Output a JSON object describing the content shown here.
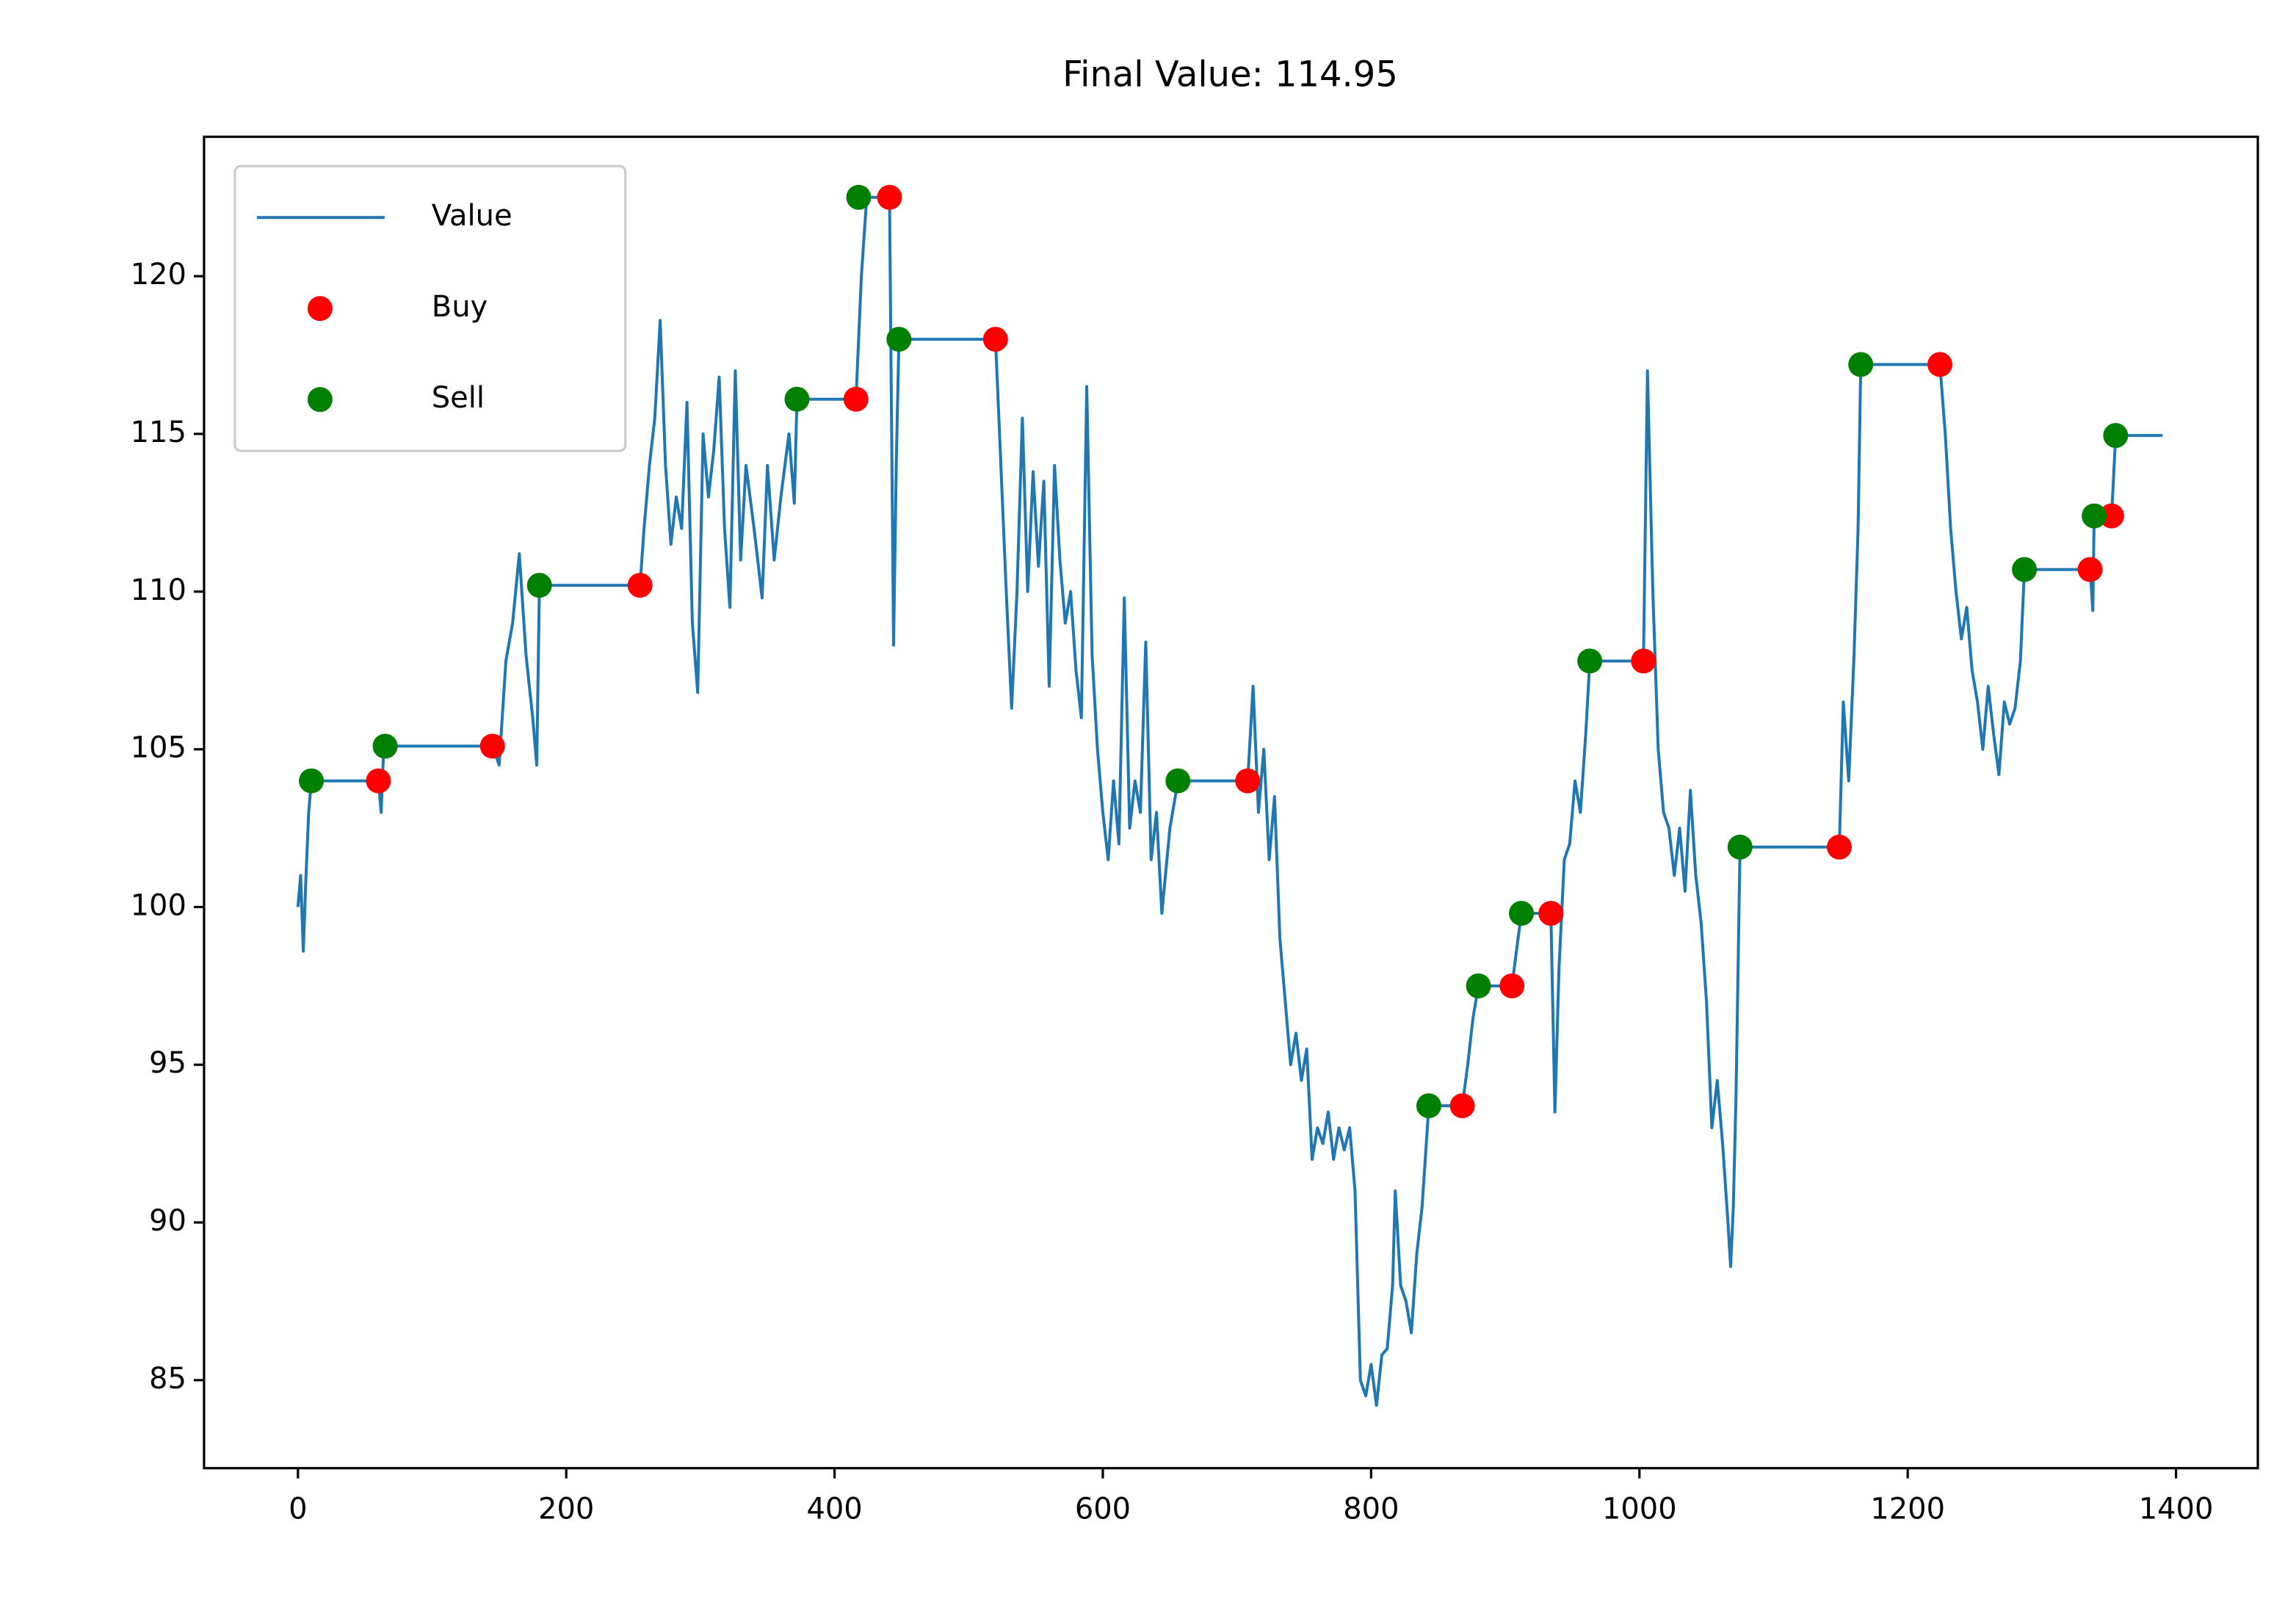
{
  "chart_data": {
    "type": "line",
    "title": "Final Value: 114.95",
    "xlim": [
      -70,
      1461
    ],
    "ylim": [
      82.21,
      124.42
    ],
    "xticks": [
      0,
      200,
      400,
      600,
      800,
      1000,
      1200,
      1400
    ],
    "yticks": [
      85,
      90,
      95,
      100,
      105,
      110,
      115,
      120
    ],
    "legend": "upper left",
    "series": [
      {
        "name": "Value",
        "type": "line",
        "color": "#1f77b4",
        "x": [
          0,
          2,
          4,
          6,
          8,
          10,
          60,
          62,
          64,
          145,
          150,
          155,
          160,
          165,
          170,
          175,
          178,
          180,
          255,
          258,
          262,
          266,
          270,
          274,
          278,
          282,
          286,
          290,
          294,
          298,
          302,
          306,
          310,
          314,
          318,
          322,
          326,
          330,
          334,
          340,
          346,
          350,
          355,
          360,
          366,
          370,
          372,
          416,
          420,
          424,
          441,
          444,
          446,
          448,
          520,
          524,
          528,
          532,
          536,
          540,
          544,
          548,
          552,
          556,
          560,
          564,
          568,
          572,
          576,
          580,
          584,
          588,
          592,
          596,
          600,
          604,
          608,
          612,
          616,
          620,
          624,
          628,
          632,
          636,
          640,
          644,
          650,
          656,
          708,
          712,
          716,
          720,
          724,
          728,
          732,
          736,
          740,
          744,
          748,
          752,
          756,
          760,
          764,
          768,
          772,
          776,
          780,
          784,
          788,
          792,
          796,
          800,
          804,
          808,
          812,
          816,
          818,
          822,
          826,
          830,
          834,
          838,
          843,
          868,
          872,
          876,
          880,
          905,
          908,
          912,
          934,
          937,
          940,
          944,
          948,
          952,
          956,
          960,
          963,
          1003,
          1006,
          1010,
          1014,
          1018,
          1022,
          1026,
          1030,
          1034,
          1038,
          1042,
          1046,
          1050,
          1054,
          1058,
          1062,
          1066,
          1068,
          1070,
          1072,
          1075,
          1149,
          1152,
          1156,
          1160,
          1163,
          1165,
          1224,
          1228,
          1232,
          1236,
          1240,
          1244,
          1248,
          1252,
          1256,
          1260,
          1264,
          1268,
          1272,
          1276,
          1280,
          1284,
          1287,
          1336,
          1338,
          1339,
          1352,
          1355,
          1390
        ],
        "values": [
          100,
          101,
          98.6,
          101,
          103,
          104,
          104,
          103,
          105.1,
          105.1,
          104.5,
          107.8,
          109,
          111.2,
          108,
          106,
          104.5,
          110.2,
          110.2,
          112,
          114,
          115.5,
          118.6,
          114,
          111.5,
          113,
          112,
          116,
          109,
          106.8,
          115,
          113,
          114.5,
          116.8,
          112,
          109.5,
          117,
          111,
          114,
          112,
          109.8,
          114,
          111,
          113,
          115,
          112.8,
          116.1,
          116.1,
          120,
          122.5,
          122.5,
          108.3,
          114,
          118,
          118,
          114,
          110,
          106.3,
          110,
          115.5,
          110,
          113.8,
          110.8,
          113.5,
          107,
          114,
          111,
          109,
          110,
          107.5,
          106,
          116.5,
          108,
          105,
          103,
          101.5,
          104,
          102,
          109.8,
          102.5,
          104,
          103,
          108.4,
          101.5,
          103,
          99.8,
          102.5,
          104,
          104,
          107,
          103,
          105,
          101.5,
          103.5,
          99,
          97,
          95,
          96,
          94.5,
          95.5,
          92,
          93,
          92.5,
          93.5,
          92,
          93,
          92.3,
          93,
          91,
          85,
          84.5,
          85.5,
          84.2,
          85.8,
          86,
          88,
          91,
          88,
          87.5,
          86.5,
          89,
          90.5,
          93.7,
          93.7,
          95,
          96.5,
          97.5,
          97.5,
          98.5,
          99.8,
          99.8,
          93.5,
          98,
          101.5,
          102,
          104,
          103,
          105.5,
          107.8,
          107.8,
          117,
          110,
          105,
          103,
          102.5,
          101,
          102.5,
          100.5,
          103.7,
          101,
          99.5,
          97,
          93,
          94.5,
          92.5,
          90,
          88.6,
          90.5,
          94,
          101.9,
          101.9,
          106.5,
          104,
          108,
          112,
          117.2,
          117.2,
          115,
          112,
          110,
          108.5,
          109.5,
          107.5,
          106.5,
          105,
          107,
          105.5,
          104.2,
          106.5,
          105.8,
          106.3,
          107.8,
          110.7,
          110.7,
          109.4,
          112.4,
          112.4,
          114.95,
          114.95
        ]
      },
      {
        "name": "Buy",
        "type": "scatter",
        "color": "red",
        "x": [
          60,
          145,
          255,
          416,
          441,
          520,
          708,
          868,
          905,
          934,
          1003,
          1149,
          1224,
          1336,
          1352
        ],
        "values": [
          104,
          105.1,
          110.2,
          116.1,
          122.5,
          118,
          104,
          93.7,
          97.5,
          99.8,
          107.8,
          101.9,
          117.2,
          110.7,
          112.4
        ]
      },
      {
        "name": "Sell",
        "type": "scatter",
        "color": "green",
        "x": [
          10,
          65,
          180,
          372,
          418,
          448,
          656,
          843,
          880,
          912,
          963,
          1075,
          1165,
          1287,
          1339,
          1355
        ],
        "values": [
          104,
          105.1,
          110.2,
          116.1,
          122.5,
          118,
          104,
          93.7,
          97.5,
          99.8,
          107.8,
          101.9,
          117.2,
          110.7,
          112.4,
          114.95
        ]
      }
    ]
  }
}
